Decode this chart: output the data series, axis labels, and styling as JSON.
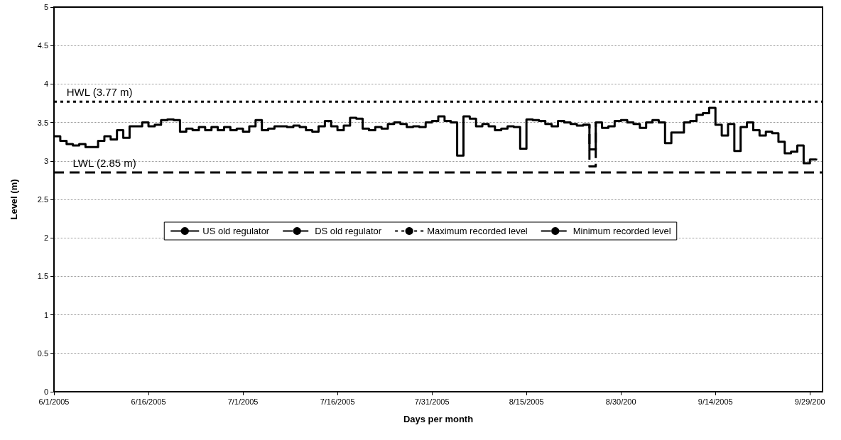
{
  "chart_data": {
    "type": "step",
    "xlabel": "Days per month",
    "ylabel": "Level (m)",
    "xlim": [
      "2005-06-01",
      "2005-10-01"
    ],
    "xticks": [
      {
        "value": "2005-06-01",
        "label": "6/1/2005"
      },
      {
        "value": "2005-06-16",
        "label": "6/16/2005"
      },
      {
        "value": "2005-07-01",
        "label": "7/1/2005"
      },
      {
        "value": "2005-07-16",
        "label": "7/16/2005"
      },
      {
        "value": "2005-07-31",
        "label": "7/31/2005"
      },
      {
        "value": "2005-08-15",
        "label": "8/15/2005"
      },
      {
        "value": "2005-08-30",
        "label": "8/30/200"
      },
      {
        "value": "2005-09-14",
        "label": "9/14/2005"
      },
      {
        "value": "2005-09-29",
        "label": "9/29/200"
      }
    ],
    "ylim": [
      0,
      5
    ],
    "yticks": [
      0,
      0.5,
      1,
      1.5,
      2,
      2.5,
      3,
      3.5,
      4,
      4.5,
      5
    ],
    "grid": "y",
    "legend": "center",
    "marker": "none",
    "x": [
      "2005-06-01",
      "2005-06-02",
      "2005-06-03",
      "2005-06-04",
      "2005-06-05",
      "2005-06-06",
      "2005-06-07",
      "2005-06-08",
      "2005-06-09",
      "2005-06-10",
      "2005-06-11",
      "2005-06-12",
      "2005-06-13",
      "2005-06-14",
      "2005-06-15",
      "2005-06-16",
      "2005-06-17",
      "2005-06-18",
      "2005-06-19",
      "2005-06-20",
      "2005-06-21",
      "2005-06-22",
      "2005-06-23",
      "2005-06-24",
      "2005-06-25",
      "2005-06-26",
      "2005-06-27",
      "2005-06-28",
      "2005-06-29",
      "2005-06-30",
      "2005-07-01",
      "2005-07-02",
      "2005-07-03",
      "2005-07-04",
      "2005-07-05",
      "2005-07-06",
      "2005-07-07",
      "2005-07-08",
      "2005-07-09",
      "2005-07-10",
      "2005-07-11",
      "2005-07-12",
      "2005-07-13",
      "2005-07-14",
      "2005-07-15",
      "2005-07-16",
      "2005-07-17",
      "2005-07-18",
      "2005-07-19",
      "2005-07-20",
      "2005-07-21",
      "2005-07-22",
      "2005-07-23",
      "2005-07-24",
      "2005-07-25",
      "2005-07-26",
      "2005-07-27",
      "2005-07-28",
      "2005-07-29",
      "2005-07-30",
      "2005-07-31",
      "2005-08-01",
      "2005-08-02",
      "2005-08-03",
      "2005-08-04",
      "2005-08-05",
      "2005-08-06",
      "2005-08-07",
      "2005-08-08",
      "2005-08-09",
      "2005-08-10",
      "2005-08-11",
      "2005-08-12",
      "2005-08-13",
      "2005-08-14",
      "2005-08-15",
      "2005-08-16",
      "2005-08-17",
      "2005-08-18",
      "2005-08-19",
      "2005-08-20",
      "2005-08-21",
      "2005-08-22",
      "2005-08-23",
      "2005-08-24",
      "2005-08-25",
      "2005-08-26",
      "2005-08-27",
      "2005-08-28",
      "2005-08-29",
      "2005-08-30",
      "2005-08-31",
      "2005-09-01",
      "2005-09-02",
      "2005-09-03",
      "2005-09-04",
      "2005-09-05",
      "2005-09-06",
      "2005-09-07",
      "2005-09-08",
      "2005-09-09",
      "2005-09-10",
      "2005-09-11",
      "2005-09-12",
      "2005-09-13",
      "2005-09-14",
      "2005-09-15",
      "2005-09-16",
      "2005-09-17",
      "2005-09-18",
      "2005-09-19",
      "2005-09-20",
      "2005-09-21",
      "2005-09-22",
      "2005-09-23",
      "2005-09-24",
      "2005-09-25",
      "2005-09-26",
      "2005-09-27",
      "2005-09-28",
      "2005-09-29",
      "2005-09-30"
    ],
    "series": [
      {
        "name": "US old regulator",
        "color": "#000000",
        "line_style": "solid",
        "values": [
          3.32,
          3.26,
          3.22,
          3.2,
          3.22,
          3.18,
          3.18,
          3.26,
          3.32,
          3.28,
          3.4,
          3.3,
          3.45,
          3.45,
          3.5,
          3.45,
          3.47,
          3.53,
          3.54,
          3.53,
          3.38,
          3.42,
          3.4,
          3.44,
          3.4,
          3.44,
          3.4,
          3.44,
          3.4,
          3.42,
          3.38,
          3.45,
          3.53,
          3.4,
          3.42,
          3.45,
          3.45,
          3.44,
          3.46,
          3.44,
          3.4,
          3.38,
          3.45,
          3.52,
          3.45,
          3.4,
          3.46,
          3.56,
          3.55,
          3.42,
          3.4,
          3.44,
          3.42,
          3.48,
          3.5,
          3.48,
          3.44,
          3.45,
          3.44,
          3.5,
          3.52,
          3.58,
          3.52,
          3.5,
          3.07,
          3.58,
          3.55,
          3.45,
          3.48,
          3.45,
          3.4,
          3.42,
          3.45,
          3.44,
          3.16,
          3.54,
          3.53,
          3.52,
          3.48,
          3.45,
          3.52,
          3.5,
          3.48,
          3.46,
          3.47,
          3.15,
          3.5,
          3.43,
          3.45,
          3.52,
          3.53,
          3.5,
          3.48,
          3.43,
          3.5,
          3.53,
          3.5,
          3.23,
          3.37,
          3.37,
          3.5,
          3.52,
          3.6,
          3.62,
          3.69,
          3.47,
          3.33,
          3.48,
          3.13,
          3.44,
          3.5,
          3.4,
          3.33,
          3.38,
          3.36,
          3.25,
          3.1,
          3.12,
          3.2,
          2.97,
          3.02,
          3.03
        ]
      },
      {
        "name": "DS old regulator",
        "color": "#000000",
        "line_style": "dashed",
        "x": [
          "2005-08-24",
          "2005-08-25",
          "2005-08-26"
        ],
        "values": [
          3.47,
          2.93,
          3.5
        ]
      },
      {
        "name": "Maximum recorded level",
        "type": "line",
        "color": "#000000",
        "line_style": "dotted",
        "x": [
          "2005-06-01",
          "2005-10-01"
        ],
        "values": [
          3.77,
          3.77
        ]
      },
      {
        "name": "Minimum recorded level",
        "type": "line",
        "color": "#000000",
        "line_style": "dashed",
        "x": [
          "2005-06-01",
          "2005-10-01"
        ],
        "values": [
          2.85,
          2.85
        ]
      }
    ],
    "annotations": [
      {
        "text": "HWL (3.77 m)",
        "x": "2005-06-03",
        "y": 3.77
      },
      {
        "text": "LWL (2.85 m)",
        "x": "2005-06-04",
        "y": 2.85
      }
    ]
  }
}
